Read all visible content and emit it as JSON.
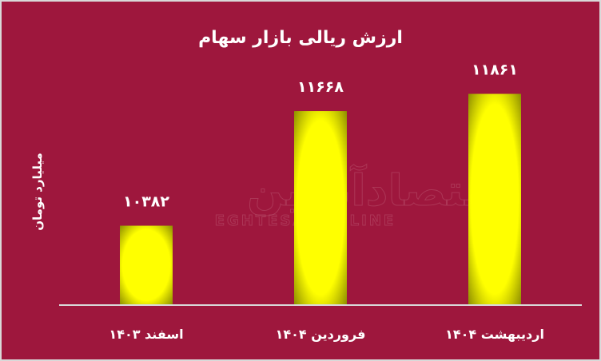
{
  "chart_data": {
    "type": "bar",
    "title": "ارزش ریالی بازار سهام",
    "ylabel": "میلیارد تومان",
    "xlabel": "",
    "categories": [
      "اسفند ۱۴۰۳",
      "فروردین ۱۴۰۴",
      "اردیبهشت ۱۴۰۴"
    ],
    "values": [
      10382,
      11668,
      11861
    ],
    "data_labels": [
      "۱۰۳۸۲",
      "۱۱۶۶۸",
      "۱۱۸۶۱"
    ],
    "ylim": [
      9500,
      12000
    ],
    "grid": false,
    "legend": "none",
    "colors": {
      "background": "#9e173d",
      "bar": "#ffff00",
      "bar_edge": "#8a8a00",
      "text": "#ffffff",
      "axis": "#d9d9d9"
    }
  },
  "watermark": "EGHTESADONLINE"
}
